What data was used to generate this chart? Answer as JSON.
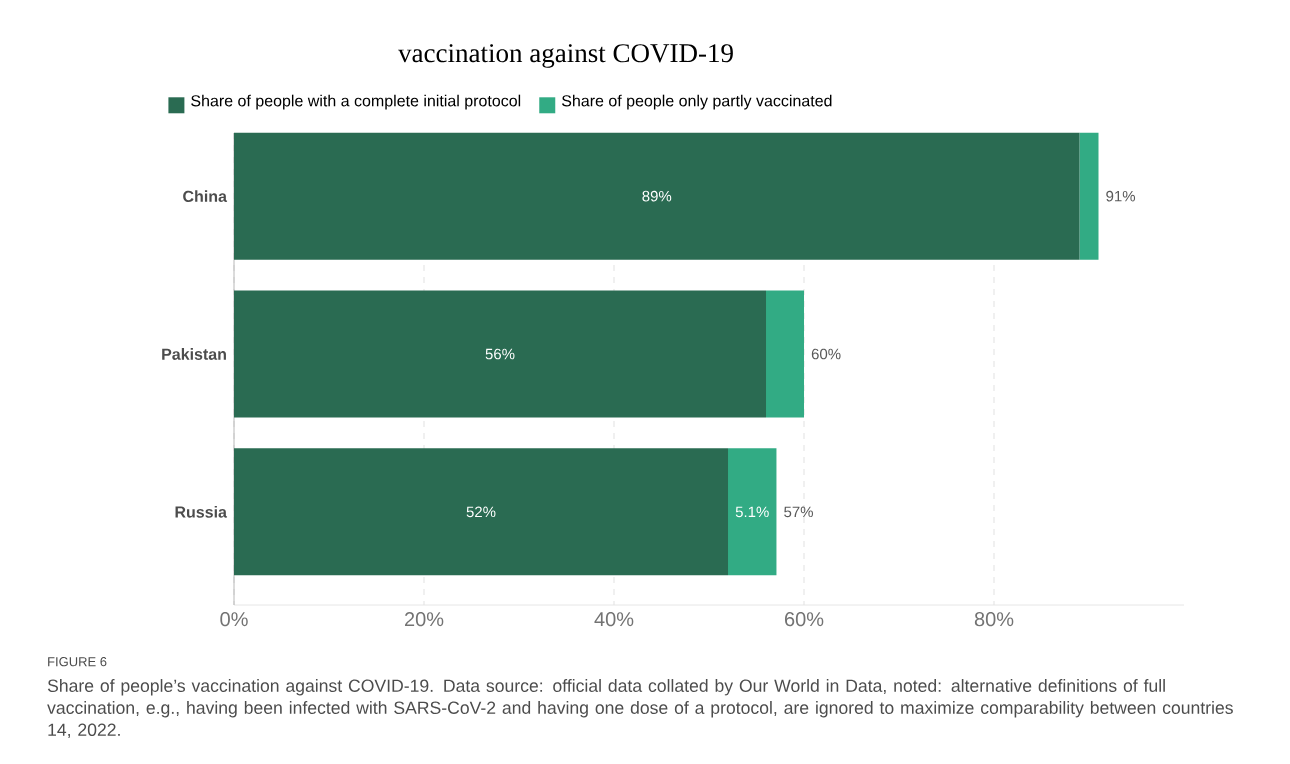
{
  "chart_data": {
    "type": "bar",
    "orientation": "horizontal",
    "stacked": true,
    "title": "vaccination against COVID-19",
    "categories": [
      "China",
      "Pakistan",
      "Russia"
    ],
    "series": [
      {
        "name": "Share of people with a complete initial protocol",
        "color": "#2a6b52",
        "values": [
          89,
          56,
          52
        ],
        "value_labels": [
          "89%",
          "56%",
          "52%"
        ]
      },
      {
        "name": "Share of people only partly vaccinated",
        "color": "#32ab84",
        "values": [
          2,
          4,
          5.1
        ],
        "value_labels": [
          null,
          null,
          "5.1%"
        ]
      }
    ],
    "totals": [
      "91%",
      "60%",
      "57%"
    ],
    "xticks": [
      {
        "value": 0,
        "label": "0%"
      },
      {
        "value": 20,
        "label": "20%"
      },
      {
        "value": 40,
        "label": "40%"
      },
      {
        "value": 60,
        "label": "60%"
      },
      {
        "value": 80,
        "label": "80%"
      }
    ],
    "xlim": [
      0,
      100
    ],
    "grid": "x",
    "legend": "top",
    "annotations": [
      "FIGURE 6",
      "Share of people’s vaccination against COVID-19. Data source: official data collated by Our World in Data, noted: alternative definitions of full vaccination, e.g., having been infected with SARS-CoV-2 and having one dose of a protocol, are ignored to maximize comparability between countries 14, 2022."
    ]
  }
}
